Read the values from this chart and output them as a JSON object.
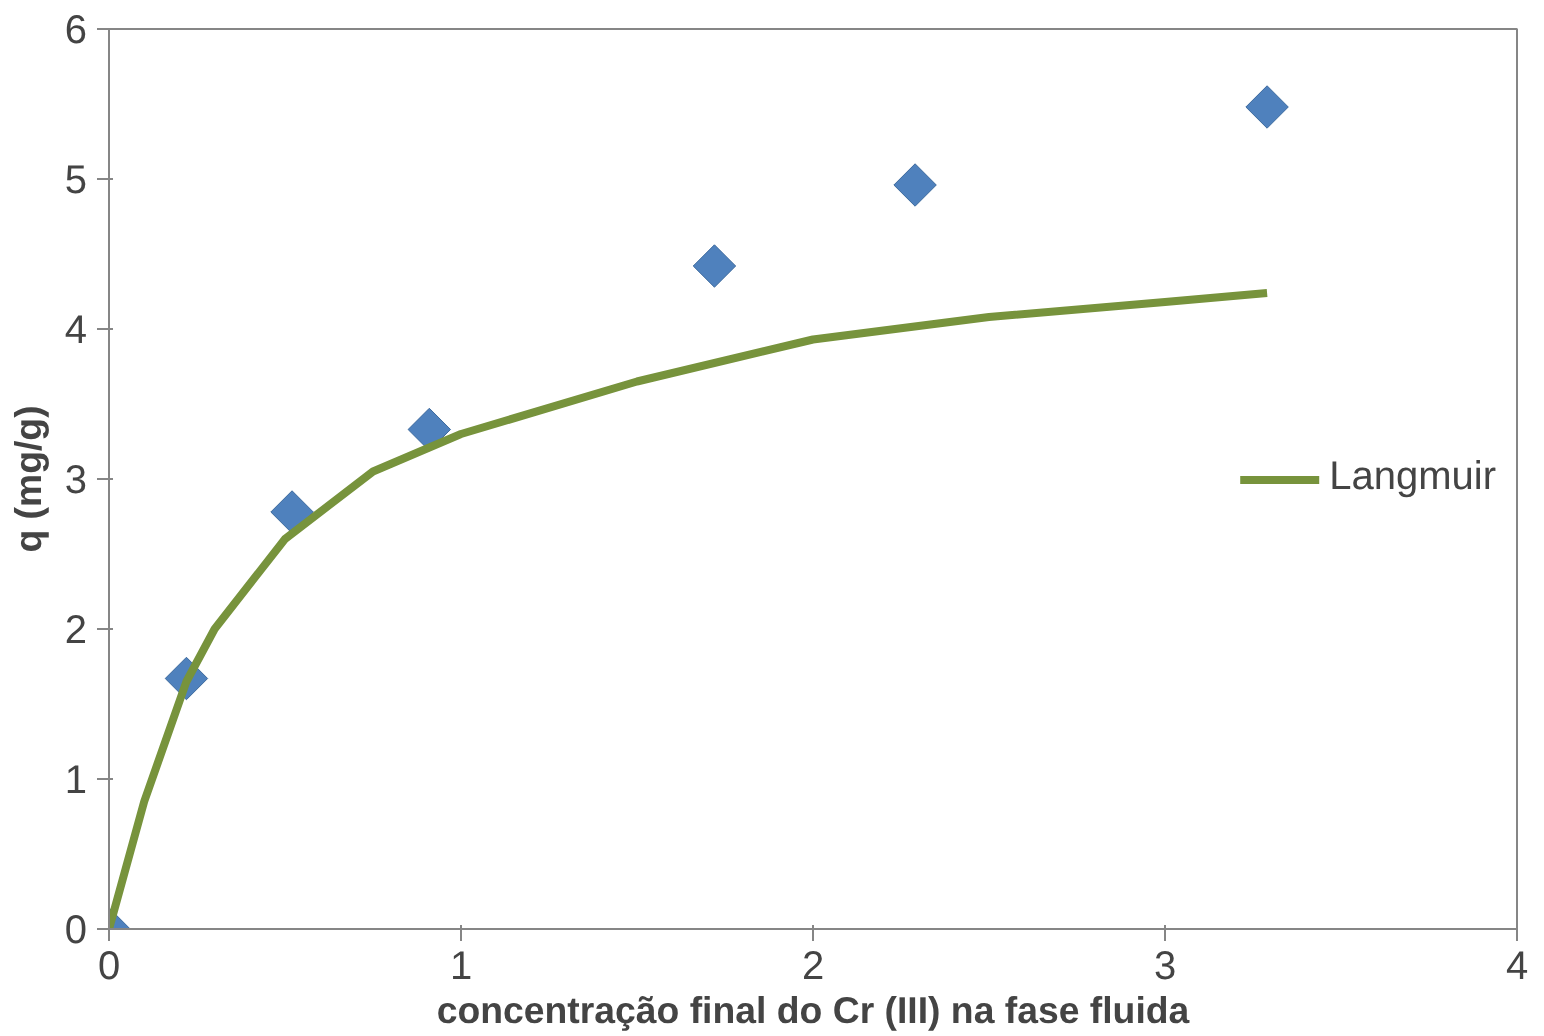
{
  "chart_data": {
    "type": "scatter",
    "xlabel": "concentração final do Cr (III) na fase fluida",
    "ylabel": "q (mg/g)",
    "xlim": [
      0,
      4
    ],
    "ylim": [
      0,
      6
    ],
    "xticks": [
      0,
      1,
      2,
      3,
      4
    ],
    "yticks": [
      0,
      1,
      2,
      3,
      4,
      5,
      6
    ],
    "grid": false,
    "legend": "right",
    "series": [
      {
        "marker": "diamond",
        "color": "#4f81bd",
        "x": [
          0,
          0.22,
          0.52,
          0.91,
          1.72,
          2.29,
          3.29
        ],
        "values": [
          0,
          1.67,
          2.78,
          3.33,
          4.42,
          4.96,
          5.48
        ]
      },
      {
        "type": "line",
        "name": "Langmuir",
        "color": "#77933c",
        "line_style": "solid",
        "x": [
          0,
          0.1,
          0.22,
          0.3,
          0.5,
          0.75,
          1,
          1.5,
          2,
          2.5,
          3,
          3.29
        ],
        "values": [
          0,
          0.85,
          1.65,
          2.0,
          2.6,
          3.05,
          3.3,
          3.65,
          3.93,
          4.08,
          4.18,
          4.24
        ]
      }
    ]
  }
}
